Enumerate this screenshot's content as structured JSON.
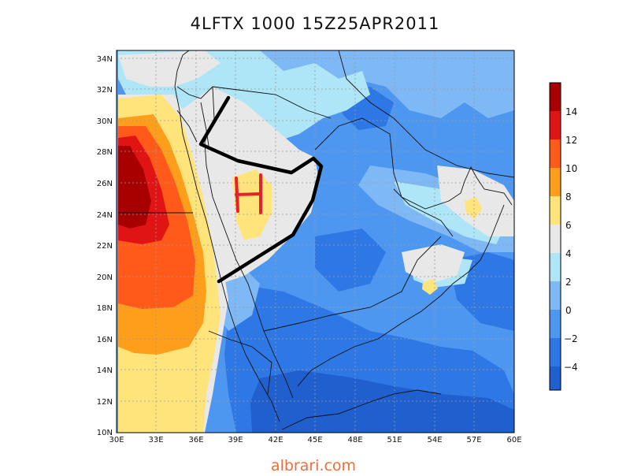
{
  "title": "4LFTX 1000 15Z25APR2011",
  "watermark": "albrari.com",
  "map": {
    "lat_labels": [
      "10N",
      "12N",
      "14N",
      "16N",
      "18N",
      "20N",
      "22N",
      "24N",
      "26N",
      "28N",
      "30N",
      "32N",
      "34N"
    ],
    "lon_labels": [
      "30E",
      "33E",
      "36E",
      "39E",
      "42E",
      "45E",
      "48E",
      "51E",
      "54E",
      "57E",
      "60E"
    ],
    "colors": {
      "c_lt_m4": "#1f5fce",
      "c_m4_m2": "#2e78e6",
      "c_m2_0": "#4e97f0",
      "c_0_2": "#7fb9f5",
      "c_2_4": "#aee6f7",
      "c_4_6": "#e8e8e8",
      "c_6_8": "#ffe47c",
      "c_8_10": "#ff9e1a",
      "c_10_12": "#ff5a1a",
      "c_12_14": "#e01414",
      "c_gt_14": "#a80000"
    },
    "annotations": {
      "high_label": "H"
    }
  },
  "colorbar": {
    "labels": [
      "14",
      "12",
      "10",
      "8",
      "6",
      "4",
      "2",
      "0",
      "−2",
      "−4"
    ],
    "colors": [
      "#a80000",
      "#e01414",
      "#ff5a1a",
      "#ff9e1a",
      "#ffe47c",
      "#e8e8e8",
      "#aee6f7",
      "#7fb9f5",
      "#4e97f0",
      "#2e78e6",
      "#1f5fce"
    ]
  }
}
